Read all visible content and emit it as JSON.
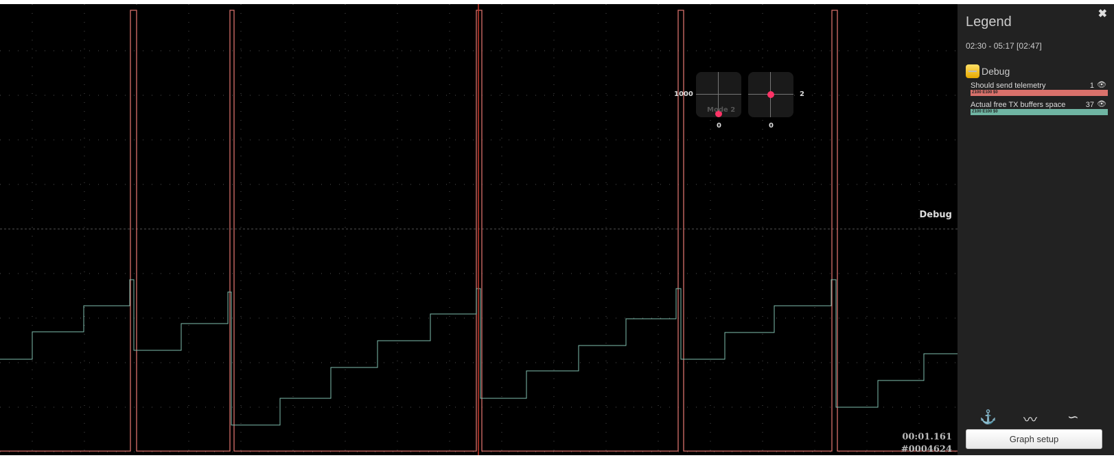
{
  "plot": {
    "group_label": "Debug",
    "time": "00:01.161",
    "frame": "#0004624",
    "sticks": {
      "left": {
        "mode_label": "Mode 2",
        "y_label": "1000",
        "x_label": "0"
      },
      "right": {
        "y_label": "2",
        "x_label": "0"
      }
    },
    "colors": {
      "trace1": "#d9716b",
      "trace2": "#7fbfb0",
      "cursor": "#c0392b"
    }
  },
  "legend": {
    "title": "Legend",
    "close_icon": "close-icon",
    "range": "02:30 - 05:17 [02:47]",
    "group": "Debug",
    "items": [
      {
        "label": "Should send telemetry",
        "value": "1",
        "settings": "Z100 E100 $0",
        "color": "#d9716b"
      },
      {
        "label": "Actual free TX buffers space",
        "value": "37",
        "settings": "Z100 E100 $0",
        "color": "#6fb5a3"
      }
    ],
    "tools": [
      "analyser-icon",
      "spectrum-icon",
      "smoothing-icon"
    ],
    "graph_setup": "Graph setup"
  }
}
